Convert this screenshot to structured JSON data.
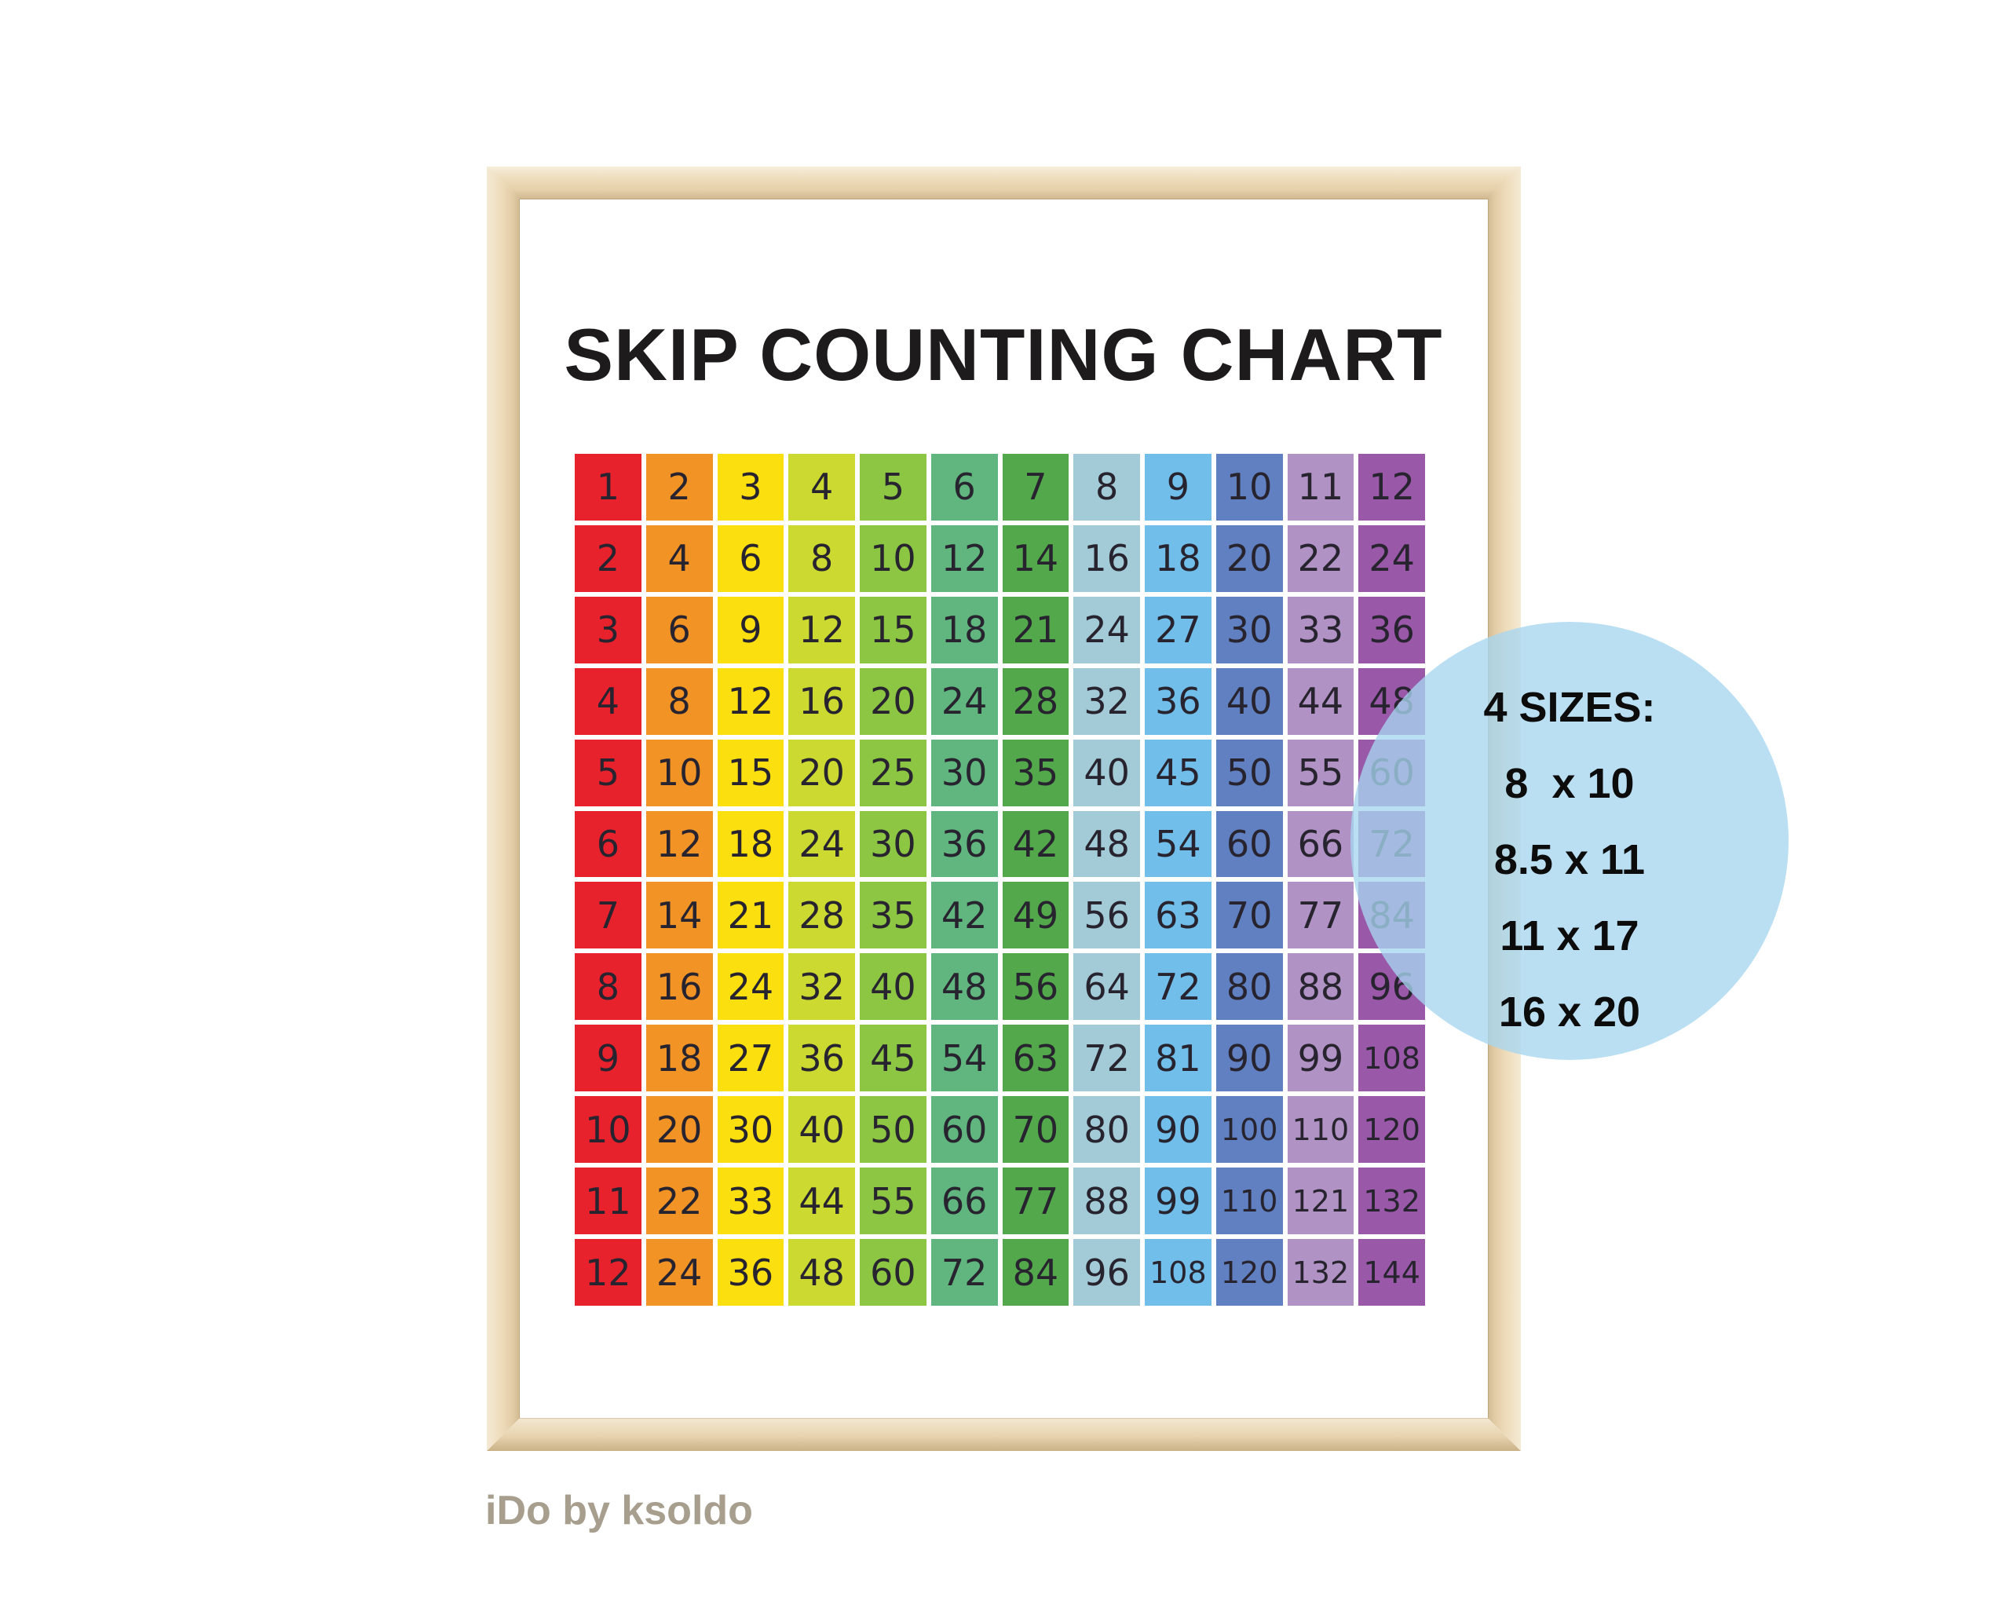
{
  "poster": {
    "title": "SKIP COUNTING CHART",
    "title_color": "#1d1b1b",
    "frame_wood_color": "#eedcba"
  },
  "brand": {
    "text": "iDo by ksoldo",
    "color": "#a79e8e"
  },
  "badge": {
    "heading": "4 SIZES:",
    "lines": [
      "8  x 10",
      "8.5 x 11",
      "11 x 17",
      "16 x 20"
    ],
    "fill": "rgba(167,214,239,0.78)"
  },
  "chart_data": {
    "type": "table",
    "title": "SKIP COUNTING CHART",
    "rows": 12,
    "cols": 12,
    "values": [
      [
        1,
        2,
        3,
        4,
        5,
        6,
        7,
        8,
        9,
        10,
        11,
        12
      ],
      [
        2,
        4,
        6,
        8,
        10,
        12,
        14,
        16,
        18,
        20,
        22,
        24
      ],
      [
        3,
        6,
        9,
        12,
        15,
        18,
        21,
        24,
        27,
        30,
        33,
        36
      ],
      [
        4,
        8,
        12,
        16,
        20,
        24,
        28,
        32,
        36,
        40,
        44,
        48
      ],
      [
        5,
        10,
        15,
        20,
        25,
        30,
        35,
        40,
        45,
        50,
        55,
        60
      ],
      [
        6,
        12,
        18,
        24,
        30,
        36,
        42,
        48,
        54,
        60,
        66,
        72
      ],
      [
        7,
        14,
        21,
        28,
        35,
        42,
        49,
        56,
        63,
        70,
        77,
        84
      ],
      [
        8,
        16,
        24,
        32,
        40,
        48,
        56,
        64,
        72,
        80,
        88,
        96
      ],
      [
        9,
        18,
        27,
        36,
        45,
        54,
        63,
        72,
        81,
        90,
        99,
        108
      ],
      [
        10,
        20,
        30,
        40,
        50,
        60,
        70,
        80,
        90,
        100,
        110,
        120
      ],
      [
        11,
        22,
        33,
        44,
        55,
        66,
        77,
        88,
        99,
        110,
        121,
        132
      ],
      [
        12,
        24,
        36,
        48,
        60,
        72,
        84,
        96,
        108,
        120,
        132,
        144
      ]
    ],
    "column_colors": [
      "#e8222d",
      "#f29325",
      "#fbdf0e",
      "#cbd930",
      "#8cc643",
      "#60b67e",
      "#52a84b",
      "#a2cbd7",
      "#70bee9",
      "#6080c1",
      "#b192c5",
      "#9a58a9"
    ],
    "number_color": "#27242f",
    "grid_line_color": "#ffffff",
    "legend_position": "none",
    "grid": "on"
  }
}
